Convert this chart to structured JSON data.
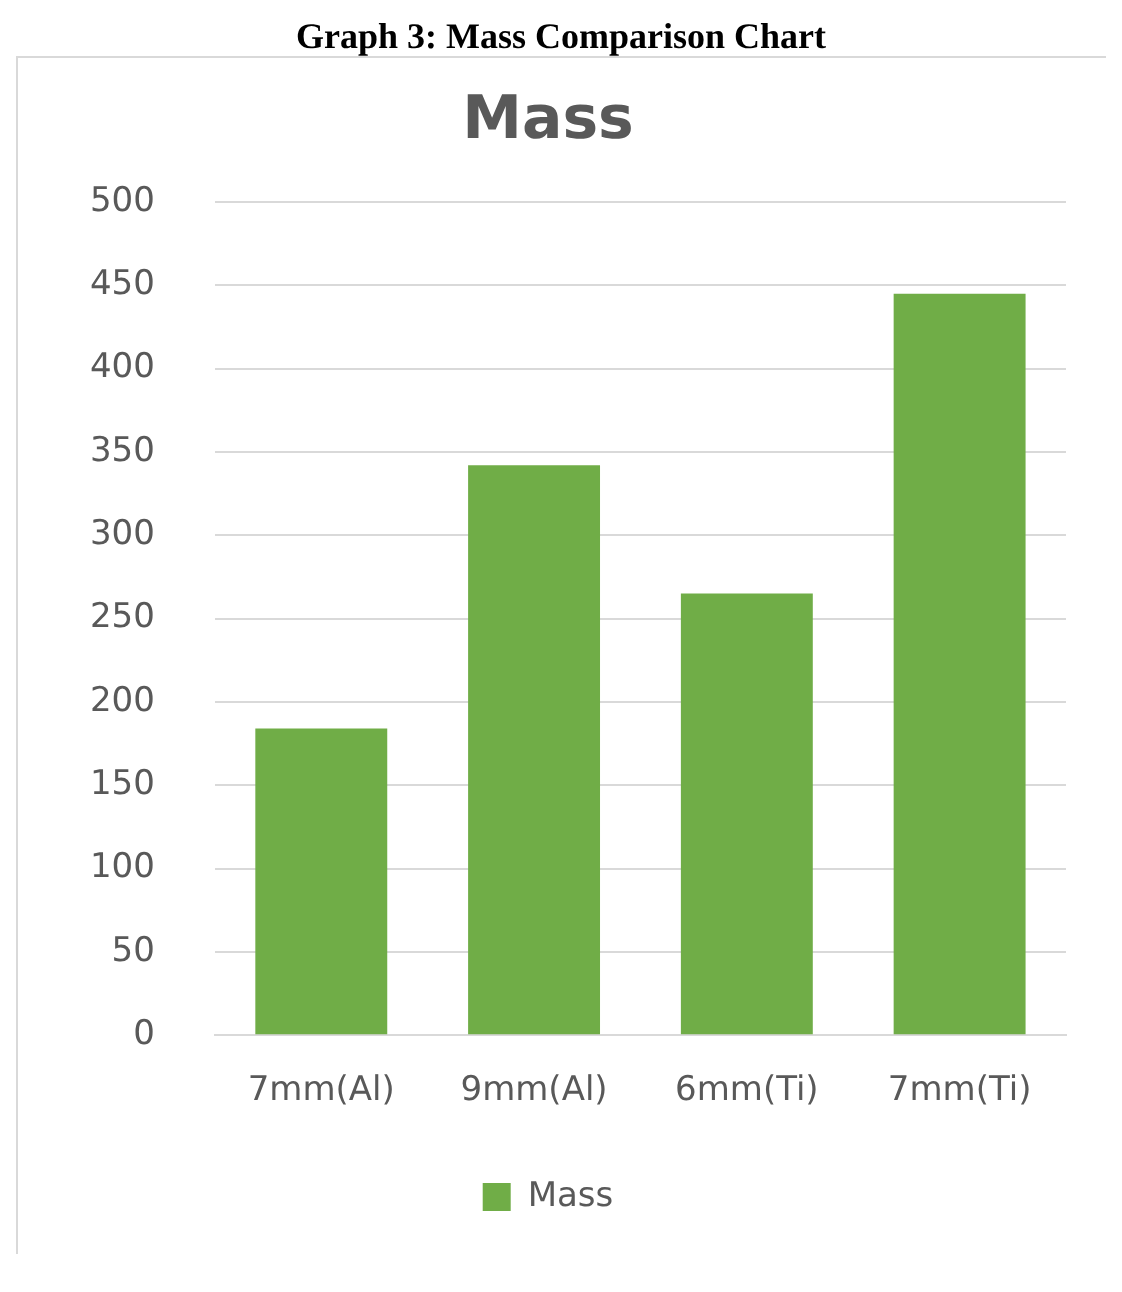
{
  "chart_data": {
    "type": "bar",
    "title": "Mass",
    "annotations": [
      "Graph 3: Mass Comparison Chart"
    ],
    "categories": [
      "7mm(Al)",
      "9mm(Al)",
      "6mm(Ti)",
      "7mm(Ti)"
    ],
    "series": [
      {
        "name": "Mass",
        "color": "#70ad47",
        "values": [
          184,
          342,
          265,
          445
        ]
      }
    ],
    "ylim": [
      0,
      500
    ],
    "yticks": [
      0,
      50,
      100,
      150,
      200,
      250,
      300,
      350,
      400,
      450,
      500
    ],
    "grid": "y",
    "legend": "bottom"
  }
}
